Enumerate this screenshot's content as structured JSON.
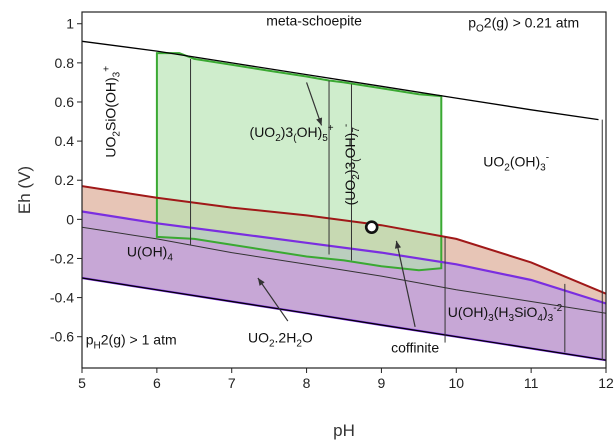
{
  "chart_data": {
    "type": "area",
    "xlabel": "pH",
    "ylabel": "Eh (V)",
    "xlim": [
      5,
      12
    ],
    "ylim": [
      -0.76,
      1.06
    ],
    "xticks": [
      5,
      6,
      7,
      8,
      9,
      10,
      11,
      12
    ],
    "yticks": [
      -0.6,
      -0.4,
      -0.2,
      0,
      0.2,
      0.4,
      0.6,
      0.8,
      1
    ],
    "grid": false,
    "legend": "none",
    "colors": {
      "meta_schoepite_fill": "#b6e4b0",
      "meta_schoepite_edge": "#3aa932",
      "uo2_fill": "#c4a2d4",
      "uo2_edge": "#7a2ee0",
      "coffinite_fill": "#e4bfae",
      "coffinite_edge": "#a01818",
      "water_line": "#000000"
    },
    "lines": {
      "o2_boundary": {
        "x": [
          5,
          6,
          7,
          8,
          9,
          10,
          11,
          11.9
        ],
        "y": [
          0.91,
          0.86,
          0.8,
          0.74,
          0.68,
          0.62,
          0.56,
          0.51
        ]
      },
      "h2_boundary": {
        "x": [
          5,
          6,
          7,
          8,
          9,
          10,
          11,
          12
        ],
        "y": [
          -0.3,
          -0.36,
          -0.42,
          -0.48,
          -0.54,
          -0.6,
          -0.66,
          -0.72
        ]
      },
      "coffinite_top": {
        "x": [
          5,
          6,
          7,
          8,
          9,
          10,
          11,
          12
        ],
        "y": [
          0.17,
          0.11,
          0.06,
          0.02,
          -0.03,
          -0.1,
          -0.22,
          -0.38
        ]
      },
      "uo2_top": {
        "x": [
          5,
          6,
          7,
          8,
          9,
          10,
          11,
          12
        ],
        "y": [
          0.04,
          -0.02,
          -0.07,
          -0.12,
          -0.17,
          -0.23,
          -0.31,
          -0.43
        ]
      },
      "uoh4_boundary": {
        "x": [
          5,
          6,
          7,
          8,
          9,
          10,
          11,
          12
        ],
        "y": [
          -0.04,
          -0.1,
          -0.17,
          -0.23,
          -0.29,
          -0.36,
          -0.42,
          -0.48
        ]
      },
      "meta_schoepite": {
        "x": [
          6.0,
          6.3,
          6.5,
          7.0,
          7.5,
          8.0,
          8.3,
          8.5,
          9.0,
          9.5,
          9.8,
          9.8,
          9.5,
          9.0,
          8.5,
          8.0,
          7.5,
          7.0,
          6.5,
          6.0
        ],
        "y": [
          0.85,
          0.85,
          0.82,
          0.79,
          0.76,
          0.73,
          0.71,
          0.7,
          0.67,
          0.64,
          0.63,
          -0.25,
          -0.26,
          -0.24,
          -0.21,
          -0.19,
          -0.16,
          -0.13,
          -0.1,
          -0.09
        ]
      },
      "vertical_boundaries": [
        {
          "x": 6.45,
          "y0": 0.82,
          "y1": -0.13
        },
        {
          "x": 8.3,
          "y0": 0.71,
          "y1": -0.18
        },
        {
          "x": 8.6,
          "y0": 0.69,
          "y1": -0.21
        },
        {
          "x": 9.85,
          "y0": -0.09,
          "y1": -0.63
        },
        {
          "x": 11.45,
          "y0": -0.33,
          "y1": -0.68
        },
        {
          "x": 11.95,
          "y0": 0.51,
          "y1": -0.72
        }
      ]
    },
    "point": {
      "x": 8.87,
      "y": -0.04
    },
    "annotations": [
      {
        "text": "meta-schoepite",
        "x": 8.1,
        "y": 0.99,
        "color": "#2e9a26"
      },
      {
        "text": "pO2(g) > 0.21 atm",
        "x": 10.9,
        "y": 0.98,
        "color": "#111111"
      },
      {
        "text": "(UO2)3(OH)5+",
        "x": 7.8,
        "y": 0.42,
        "color": "#111111"
      },
      {
        "text": "(UO2)3(OH)7-",
        "x": 8.65,
        "y": 0.28,
        "color": "#111111"
      },
      {
        "text": "UO2SiO(OH)3+",
        "x": 5.45,
        "y": 0.55,
        "color": "#111111"
      },
      {
        "text": "UO2(OH)3-",
        "x": 10.8,
        "y": 0.27,
        "color": "#111111"
      },
      {
        "text": "U(OH)4",
        "x": 5.6,
        "y": -0.19,
        "color": "#111111"
      },
      {
        "text": "U(OH)3(H3SiO4)3-2",
        "x": 10.65,
        "y": -0.5,
        "color": "#111111"
      },
      {
        "text": "pH2(g) > 1 atm",
        "x": 5.05,
        "y": -0.64,
        "color": "#111111"
      },
      {
        "text": "UO2.2H2O",
        "x": 7.65,
        "y": -0.63,
        "color": "#7a2ee0"
      },
      {
        "text": "coffinite",
        "x": 9.45,
        "y": -0.68,
        "color": "#a01818"
      }
    ],
    "arrows": [
      {
        "from": [
          8.0,
          0.7
        ],
        "to": [
          8.2,
          0.48
        ]
      },
      {
        "from": [
          7.75,
          -0.52
        ],
        "to": [
          7.35,
          -0.3
        ]
      },
      {
        "from": [
          9.45,
          -0.55
        ],
        "to": [
          9.2,
          -0.11
        ]
      }
    ]
  }
}
